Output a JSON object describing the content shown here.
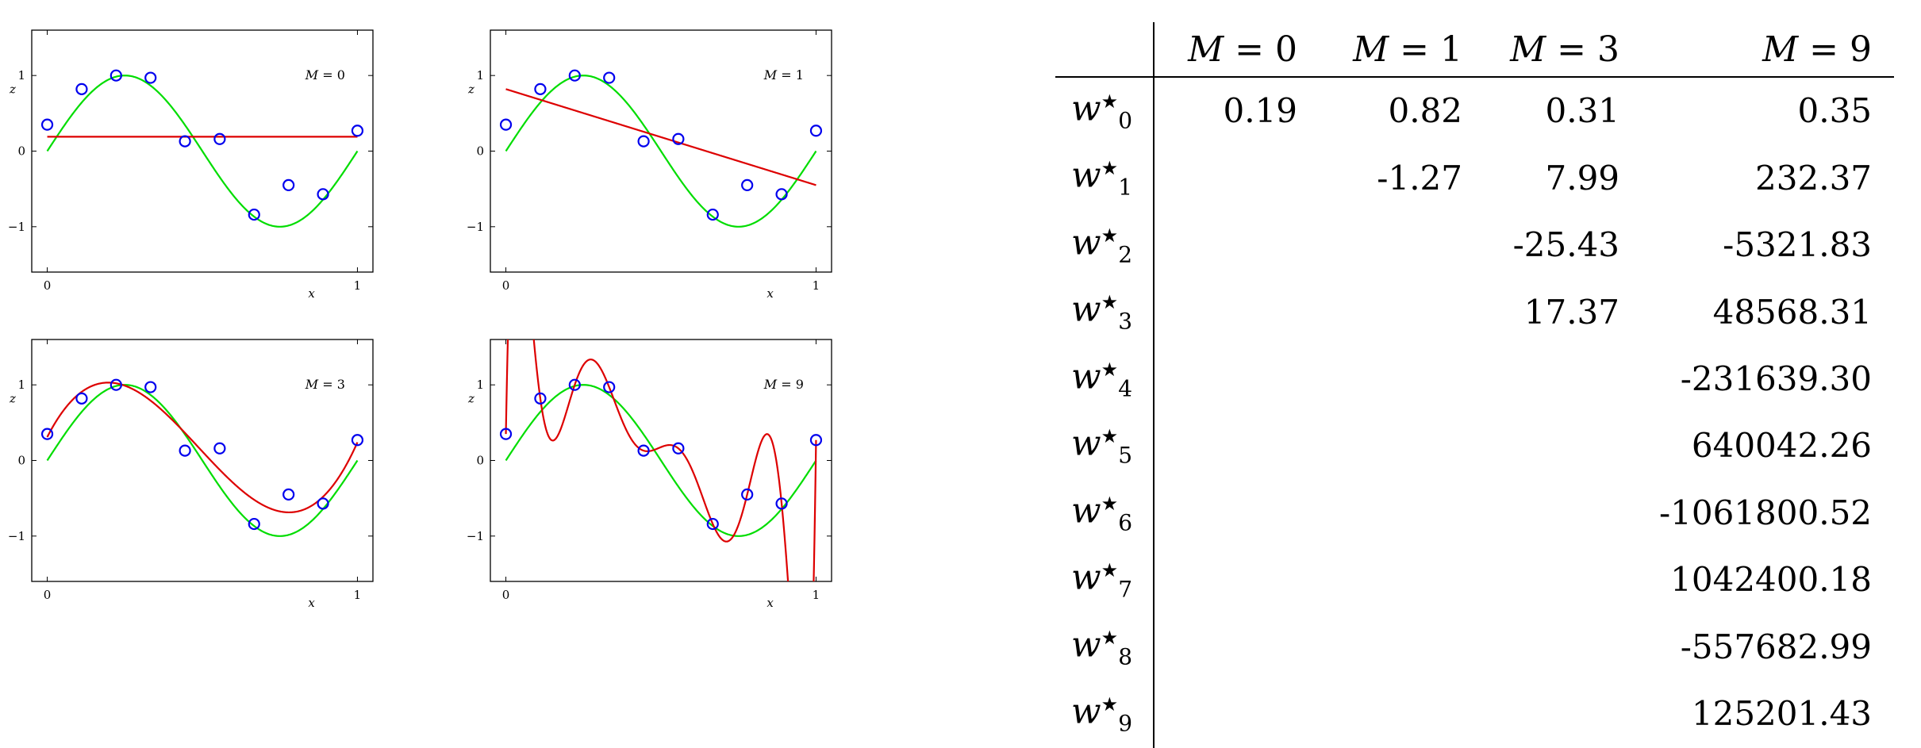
{
  "chart_data": [
    {
      "type": "line",
      "label": "M = 0",
      "xlabel": "x",
      "ylabel": "z",
      "xlim": [
        -0.05,
        1.05
      ],
      "ylim": [
        -1.6,
        1.6
      ],
      "xticks": [
        "0",
        "1"
      ],
      "yticks": [
        "1",
        "0",
        "−1"
      ],
      "points": [
        [
          0.0,
          0.35
        ],
        [
          0.111,
          0.82
        ],
        [
          0.222,
          1.0
        ],
        [
          0.333,
          0.97
        ],
        [
          0.444,
          0.13
        ],
        [
          0.556,
          0.16
        ],
        [
          0.667,
          -0.84
        ],
        [
          0.778,
          -0.45
        ],
        [
          0.889,
          -0.57
        ],
        [
          1.0,
          0.27
        ]
      ],
      "true_curve": "sin(2*pi*x)",
      "fit": {
        "order": 0,
        "coefficients": [
          0.19
        ]
      }
    },
    {
      "type": "line",
      "label": "M = 1",
      "xlabel": "x",
      "ylabel": "z",
      "xlim": [
        -0.05,
        1.05
      ],
      "ylim": [
        -1.6,
        1.6
      ],
      "xticks": [
        "0",
        "1"
      ],
      "yticks": [
        "1",
        "0",
        "−1"
      ],
      "points": [
        [
          0.0,
          0.35
        ],
        [
          0.111,
          0.82
        ],
        [
          0.222,
          1.0
        ],
        [
          0.333,
          0.97
        ],
        [
          0.444,
          0.13
        ],
        [
          0.556,
          0.16
        ],
        [
          0.667,
          -0.84
        ],
        [
          0.778,
          -0.45
        ],
        [
          0.889,
          -0.57
        ],
        [
          1.0,
          0.27
        ]
      ],
      "true_curve": "sin(2*pi*x)",
      "fit": {
        "order": 1,
        "coefficients": [
          0.82,
          -1.27
        ]
      }
    },
    {
      "type": "line",
      "label": "M = 3",
      "xlabel": "x",
      "ylabel": "z",
      "xlim": [
        -0.05,
        1.05
      ],
      "ylim": [
        -1.6,
        1.6
      ],
      "xticks": [
        "0",
        "1"
      ],
      "yticks": [
        "1",
        "0",
        "−1"
      ],
      "points": [
        [
          0.0,
          0.35
        ],
        [
          0.111,
          0.82
        ],
        [
          0.222,
          1.0
        ],
        [
          0.333,
          0.97
        ],
        [
          0.444,
          0.13
        ],
        [
          0.556,
          0.16
        ],
        [
          0.667,
          -0.84
        ],
        [
          0.778,
          -0.45
        ],
        [
          0.889,
          -0.57
        ],
        [
          1.0,
          0.27
        ]
      ],
      "true_curve": "sin(2*pi*x)",
      "fit": {
        "order": 3,
        "coefficients": [
          0.31,
          7.99,
          -25.43,
          17.37
        ]
      }
    },
    {
      "type": "line",
      "label": "M = 9",
      "xlabel": "x",
      "ylabel": "z",
      "xlim": [
        -0.05,
        1.05
      ],
      "ylim": [
        -1.6,
        1.6
      ],
      "xticks": [
        "0",
        "1"
      ],
      "yticks": [
        "1",
        "0",
        "−1"
      ],
      "points": [
        [
          0.0,
          0.35
        ],
        [
          0.111,
          0.82
        ],
        [
          0.222,
          1.0
        ],
        [
          0.333,
          0.97
        ],
        [
          0.444,
          0.13
        ],
        [
          0.556,
          0.16
        ],
        [
          0.667,
          -0.84
        ],
        [
          0.778,
          -0.45
        ],
        [
          0.889,
          -0.57
        ],
        [
          1.0,
          0.27
        ]
      ],
      "true_curve": "sin(2*pi*x)",
      "fit": {
        "order": 9,
        "interpolates_points": true
      }
    },
    {
      "type": "table",
      "columns": [
        "M = 0",
        "M = 1",
        "M = 3",
        "M = 9"
      ],
      "rows": [
        {
          "label": "w",
          "sub": "0",
          "sup": "★",
          "values": [
            "0.19",
            "0.82",
            "0.31",
            "0.35"
          ]
        },
        {
          "label": "w",
          "sub": "1",
          "sup": "★",
          "values": [
            "",
            "-1.27",
            "7.99",
            "232.37"
          ]
        },
        {
          "label": "w",
          "sub": "2",
          "sup": "★",
          "values": [
            "",
            "",
            "-25.43",
            "-5321.83"
          ]
        },
        {
          "label": "w",
          "sub": "3",
          "sup": "★",
          "values": [
            "",
            "",
            "17.37",
            "48568.31"
          ]
        },
        {
          "label": "w",
          "sub": "4",
          "sup": "★",
          "values": [
            "",
            "",
            "",
            "-231639.30"
          ]
        },
        {
          "label": "w",
          "sub": "5",
          "sup": "★",
          "values": [
            "",
            "",
            "",
            "640042.26"
          ]
        },
        {
          "label": "w",
          "sub": "6",
          "sup": "★",
          "values": [
            "",
            "",
            "",
            "-1061800.52"
          ]
        },
        {
          "label": "w",
          "sub": "7",
          "sup": "★",
          "values": [
            "",
            "",
            "",
            "1042400.18"
          ]
        },
        {
          "label": "w",
          "sub": "8",
          "sup": "★",
          "values": [
            "",
            "",
            "",
            "-557682.99"
          ]
        },
        {
          "label": "w",
          "sub": "9",
          "sup": "★",
          "values": [
            "",
            "",
            "",
            "125201.43"
          ]
        }
      ]
    }
  ],
  "colors": {
    "true_curve": "#00dd00",
    "fit": "#dd0000",
    "points": "#0000ee",
    "axes": "#000000"
  }
}
